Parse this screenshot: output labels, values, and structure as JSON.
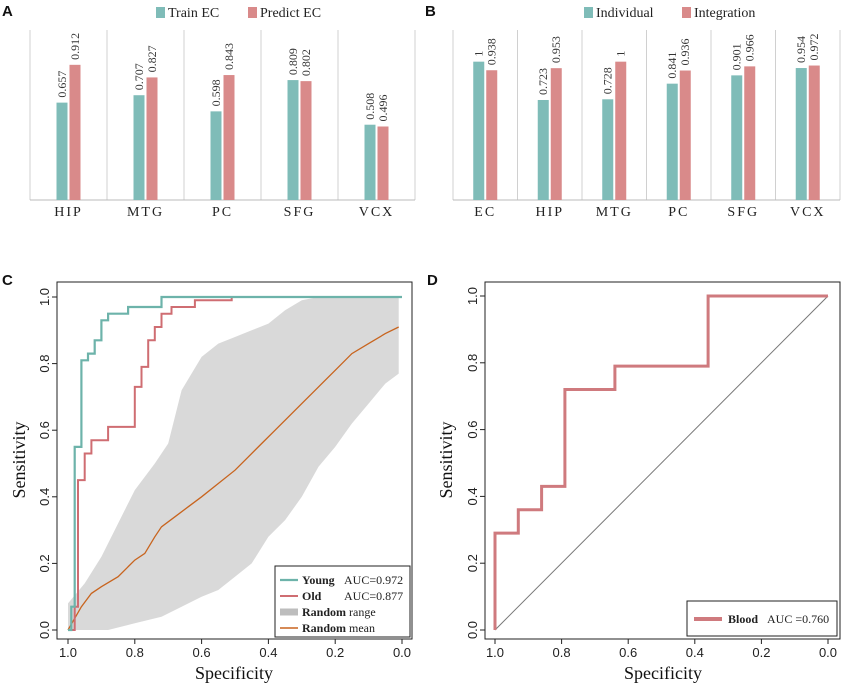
{
  "panels": {
    "A": "A",
    "B": "B",
    "C": "C",
    "D": "D"
  },
  "colors": {
    "teal": "#7fbcb8",
    "pink": "#d98a8a",
    "young": "#6db3aa",
    "old": "#cf6d72",
    "random_mean": "#c8641e",
    "band": "#d9d9d9",
    "blood": "#cf7a7e"
  },
  "chart_data": [
    {
      "type": "bar",
      "panel": "A",
      "categories": [
        "HIP",
        "MTG",
        "PC",
        "SFG",
        "VCX"
      ],
      "series": [
        {
          "name": "Train EC",
          "values": [
            0.657,
            0.707,
            0.598,
            0.809,
            0.508
          ],
          "labels": [
            "0.657",
            "0.707",
            "0.598",
            "0.809",
            "0.508"
          ]
        },
        {
          "name": "Predict EC",
          "values": [
            0.912,
            0.827,
            0.843,
            0.802,
            0.496
          ],
          "labels": [
            "0.912",
            "0.827",
            "0.843",
            "0.802",
            "0.496"
          ]
        }
      ],
      "ylim": [
        0,
        1.12
      ]
    },
    {
      "type": "bar",
      "panel": "B",
      "categories": [
        "EC",
        "HIP",
        "MTG",
        "PC",
        "SFG",
        "VCX"
      ],
      "series": [
        {
          "name": "Individual",
          "values": [
            1,
            0.723,
            0.728,
            0.841,
            0.901,
            0.954
          ],
          "labels": [
            "1",
            "0.723",
            "0.728",
            "0.841",
            "0.901",
            "0.954"
          ]
        },
        {
          "name": "Integration",
          "values": [
            0.938,
            0.953,
            1,
            0.936,
            0.966,
            0.972
          ],
          "labels": [
            "0.938",
            "0.953",
            "1",
            "0.936",
            "0.966",
            "0.972"
          ]
        }
      ],
      "ylim": [
        0,
        1.2
      ]
    },
    {
      "type": "line",
      "panel": "C",
      "xlabel": "Specificity",
      "ylabel": "Sensitivity",
      "xlim": [
        1.0,
        0.0
      ],
      "ylim": [
        0,
        1.0
      ],
      "xticks": [
        "1.0",
        "0.8",
        "0.6",
        "0.4",
        "0.2",
        "0.0"
      ],
      "yticks": [
        "0.0",
        "0.2",
        "0.4",
        "0.6",
        "0.8",
        "1.0"
      ],
      "series": [
        {
          "name": "Young",
          "auc": "AUC=0.972",
          "points": [
            [
              1,
              0
            ],
            [
              0.99,
              0
            ],
            [
              0.99,
              0.07
            ],
            [
              0.98,
              0.07
            ],
            [
              0.98,
              0.55
            ],
            [
              0.96,
              0.55
            ],
            [
              0.96,
              0.81
            ],
            [
              0.94,
              0.81
            ],
            [
              0.94,
              0.83
            ],
            [
              0.92,
              0.83
            ],
            [
              0.92,
              0.87
            ],
            [
              0.9,
              0.87
            ],
            [
              0.9,
              0.93
            ],
            [
              0.88,
              0.93
            ],
            [
              0.88,
              0.95
            ],
            [
              0.82,
              0.95
            ],
            [
              0.82,
              0.97
            ],
            [
              0.72,
              0.97
            ],
            [
              0.72,
              1.0
            ],
            [
              0,
              1.0
            ]
          ]
        },
        {
          "name": "Old",
          "auc": "AUC=0.877",
          "points": [
            [
              1,
              0
            ],
            [
              0.98,
              0
            ],
            [
              0.98,
              0.07
            ],
            [
              0.97,
              0.07
            ],
            [
              0.97,
              0.45
            ],
            [
              0.95,
              0.45
            ],
            [
              0.95,
              0.53
            ],
            [
              0.93,
              0.53
            ],
            [
              0.93,
              0.57
            ],
            [
              0.88,
              0.57
            ],
            [
              0.88,
              0.61
            ],
            [
              0.8,
              0.61
            ],
            [
              0.8,
              0.73
            ],
            [
              0.78,
              0.73
            ],
            [
              0.78,
              0.79
            ],
            [
              0.76,
              0.79
            ],
            [
              0.76,
              0.87
            ],
            [
              0.74,
              0.87
            ],
            [
              0.74,
              0.91
            ],
            [
              0.72,
              0.91
            ],
            [
              0.72,
              0.95
            ],
            [
              0.69,
              0.95
            ],
            [
              0.69,
              0.97
            ],
            [
              0.62,
              0.97
            ],
            [
              0.62,
              0.99
            ],
            [
              0.51,
              0.99
            ],
            [
              0.51,
              1.0
            ],
            [
              0,
              1.0
            ]
          ]
        },
        {
          "name": "Random mean",
          "points": [
            [
              1,
              0
            ],
            [
              0.96,
              0.07
            ],
            [
              0.93,
              0.11
            ],
            [
              0.9,
              0.13
            ],
            [
              0.85,
              0.16
            ],
            [
              0.8,
              0.21
            ],
            [
              0.77,
              0.23
            ],
            [
              0.74,
              0.28
            ],
            [
              0.72,
              0.31
            ],
            [
              0.68,
              0.34
            ],
            [
              0.64,
              0.37
            ],
            [
              0.6,
              0.4
            ],
            [
              0.55,
              0.44
            ],
            [
              0.5,
              0.48
            ],
            [
              0.46,
              0.52
            ],
            [
              0.42,
              0.56
            ],
            [
              0.38,
              0.6
            ],
            [
              0.34,
              0.64
            ],
            [
              0.3,
              0.68
            ],
            [
              0.25,
              0.73
            ],
            [
              0.2,
              0.78
            ],
            [
              0.15,
              0.83
            ],
            [
              0.1,
              0.86
            ],
            [
              0.05,
              0.89
            ],
            [
              0.01,
              0.91
            ]
          ]
        }
      ],
      "band": {
        "name": "Random range",
        "upper": [
          [
            1,
            0.08
          ],
          [
            0.95,
            0.14
          ],
          [
            0.9,
            0.22
          ],
          [
            0.85,
            0.32
          ],
          [
            0.8,
            0.42
          ],
          [
            0.74,
            0.5
          ],
          [
            0.7,
            0.56
          ],
          [
            0.66,
            0.72
          ],
          [
            0.6,
            0.82
          ],
          [
            0.55,
            0.86
          ],
          [
            0.5,
            0.88
          ],
          [
            0.45,
            0.9
          ],
          [
            0.4,
            0.92
          ],
          [
            0.35,
            0.96
          ],
          [
            0.3,
            0.99
          ],
          [
            0.25,
            1.0
          ],
          [
            0.01,
            1.0
          ]
        ],
        "lower": [
          [
            0.01,
            0.77
          ],
          [
            0.05,
            0.74
          ],
          [
            0.1,
            0.68
          ],
          [
            0.15,
            0.62
          ],
          [
            0.2,
            0.55
          ],
          [
            0.25,
            0.49
          ],
          [
            0.3,
            0.4
          ],
          [
            0.35,
            0.33
          ],
          [
            0.4,
            0.28
          ],
          [
            0.45,
            0.2
          ],
          [
            0.5,
            0.16
          ],
          [
            0.55,
            0.12
          ],
          [
            0.6,
            0.1
          ],
          [
            0.66,
            0.07
          ],
          [
            0.72,
            0.04
          ],
          [
            0.8,
            0.02
          ],
          [
            0.88,
            0.0
          ],
          [
            1,
            0.0
          ]
        ]
      },
      "legend": {
        "young_name": "Young",
        "young_auc": "AUC=0.972",
        "old_name": "Old",
        "old_auc": "AUC=0.877",
        "range_bold": "Random",
        "range_rest": " range",
        "mean_bold": "Random",
        "mean_rest": " mean"
      }
    },
    {
      "type": "line",
      "panel": "D",
      "xlabel": "Specificity",
      "ylabel": "Sensitivity",
      "xlim": [
        1.0,
        0.0
      ],
      "ylim": [
        0,
        1.0
      ],
      "xticks": [
        "1.0",
        "0.8",
        "0.6",
        "0.4",
        "0.2",
        "0.0"
      ],
      "yticks": [
        "0.0",
        "0.2",
        "0.4",
        "0.6",
        "0.8",
        "1.0"
      ],
      "series": [
        {
          "name": "Blood",
          "auc": "AUC =0.760",
          "points": [
            [
              1,
              0
            ],
            [
              1,
              0.29
            ],
            [
              0.93,
              0.29
            ],
            [
              0.93,
              0.36
            ],
            [
              0.86,
              0.36
            ],
            [
              0.86,
              0.43
            ],
            [
              0.79,
              0.43
            ],
            [
              0.79,
              0.72
            ],
            [
              0.64,
              0.72
            ],
            [
              0.64,
              0.79
            ],
            [
              0.36,
              0.79
            ],
            [
              0.36,
              1.0
            ],
            [
              0,
              1.0
            ]
          ]
        }
      ],
      "legend": {
        "blood_name": "Blood",
        "blood_auc": "AUC =0.760"
      }
    }
  ]
}
